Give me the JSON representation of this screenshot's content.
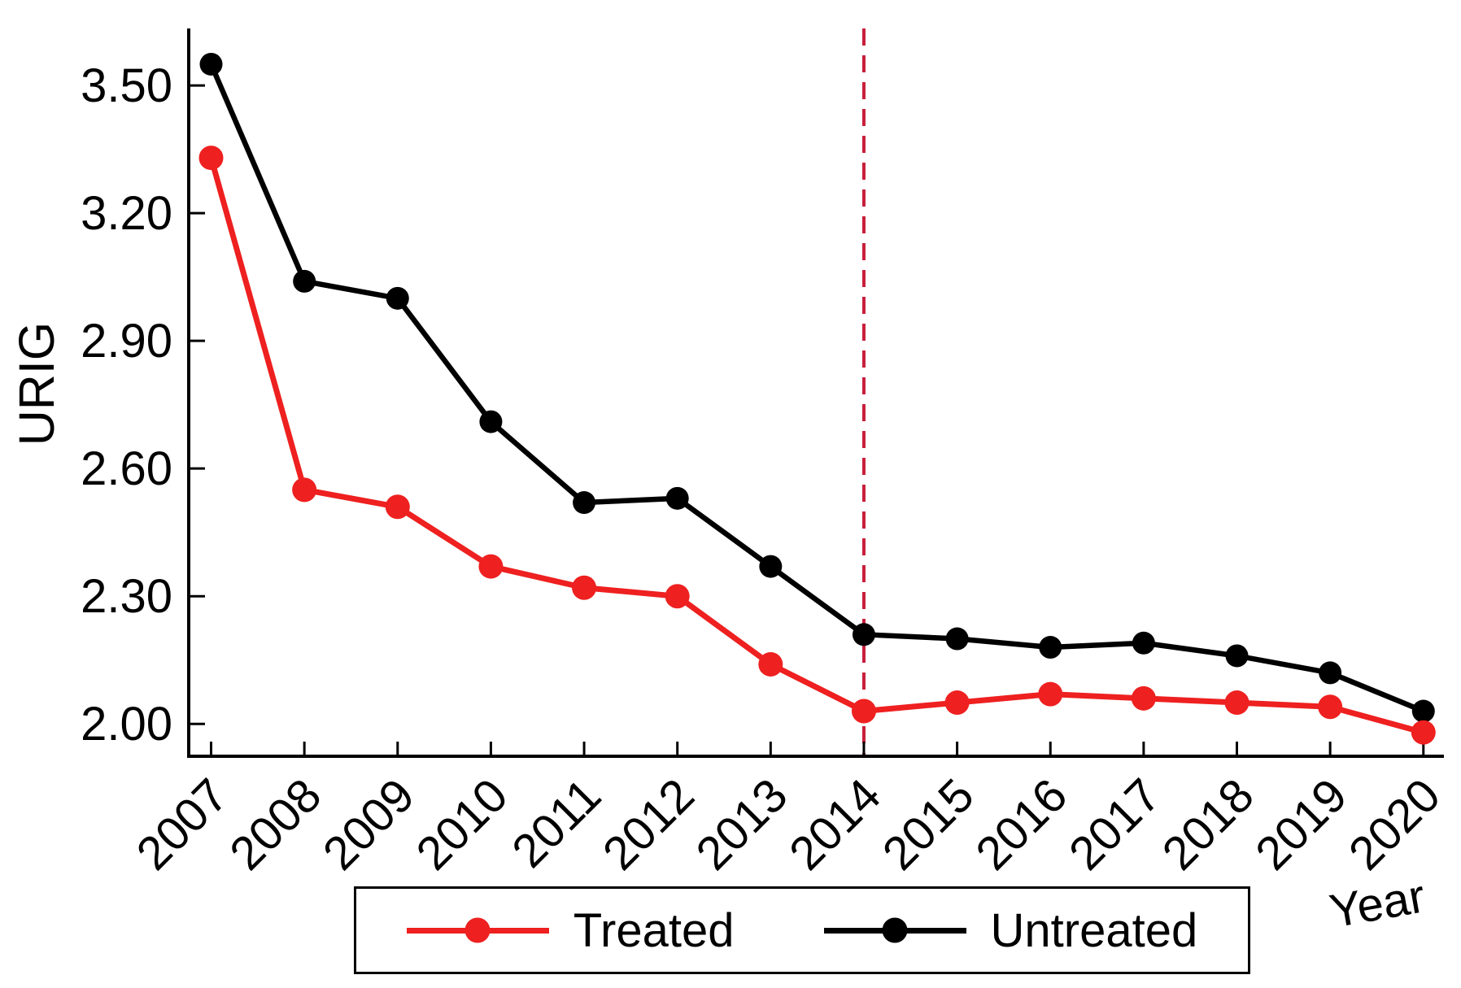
{
  "figure": {
    "ylabel": "URIG",
    "xlabel": "Year"
  },
  "legend": {
    "treated_label": "Treated",
    "untreated_label": "Untreated"
  },
  "colors": {
    "treated": "#EE2020",
    "untreated": "#000000",
    "vline": "#C81E3C",
    "axis": "#000000",
    "background": "#FFFFFF"
  },
  "chart_data": {
    "type": "line",
    "title": "",
    "xlabel": "Year",
    "ylabel": "URIG",
    "x": [
      2007,
      2008,
      2009,
      2010,
      2011,
      2012,
      2013,
      2014,
      2015,
      2016,
      2017,
      2018,
      2019,
      2020
    ],
    "series": [
      {
        "name": "Treated",
        "color_key": "treated",
        "values": [
          3.33,
          2.55,
          2.51,
          2.37,
          2.32,
          2.3,
          2.14,
          2.03,
          2.05,
          2.07,
          2.06,
          2.05,
          2.04,
          1.98
        ]
      },
      {
        "name": "Untreated",
        "color_key": "untreated",
        "values": [
          3.55,
          3.04,
          3.0,
          2.71,
          2.52,
          2.53,
          2.37,
          2.21,
          2.2,
          2.18,
          2.19,
          2.16,
          2.12,
          2.03
        ]
      }
    ],
    "yticks": [
      2.0,
      2.3,
      2.6,
      2.9,
      3.2,
      3.5
    ],
    "ytick_labels": [
      "2.00",
      "2.30",
      "2.60",
      "2.90",
      "3.20",
      "3.50"
    ],
    "xtick_labels": [
      "2007",
      "2008",
      "2009",
      "2010",
      "2011",
      "2012",
      "2013",
      "2014",
      "2015",
      "2016",
      "2017",
      "2018",
      "2019",
      "2020"
    ],
    "ylim": [
      1.924,
      3.634
    ],
    "xlim": [
      2006.76,
      2020.22
    ],
    "vline_x": 2014,
    "grid": false,
    "legend_position": "bottom-center",
    "xtick_rotation_deg": 45
  }
}
